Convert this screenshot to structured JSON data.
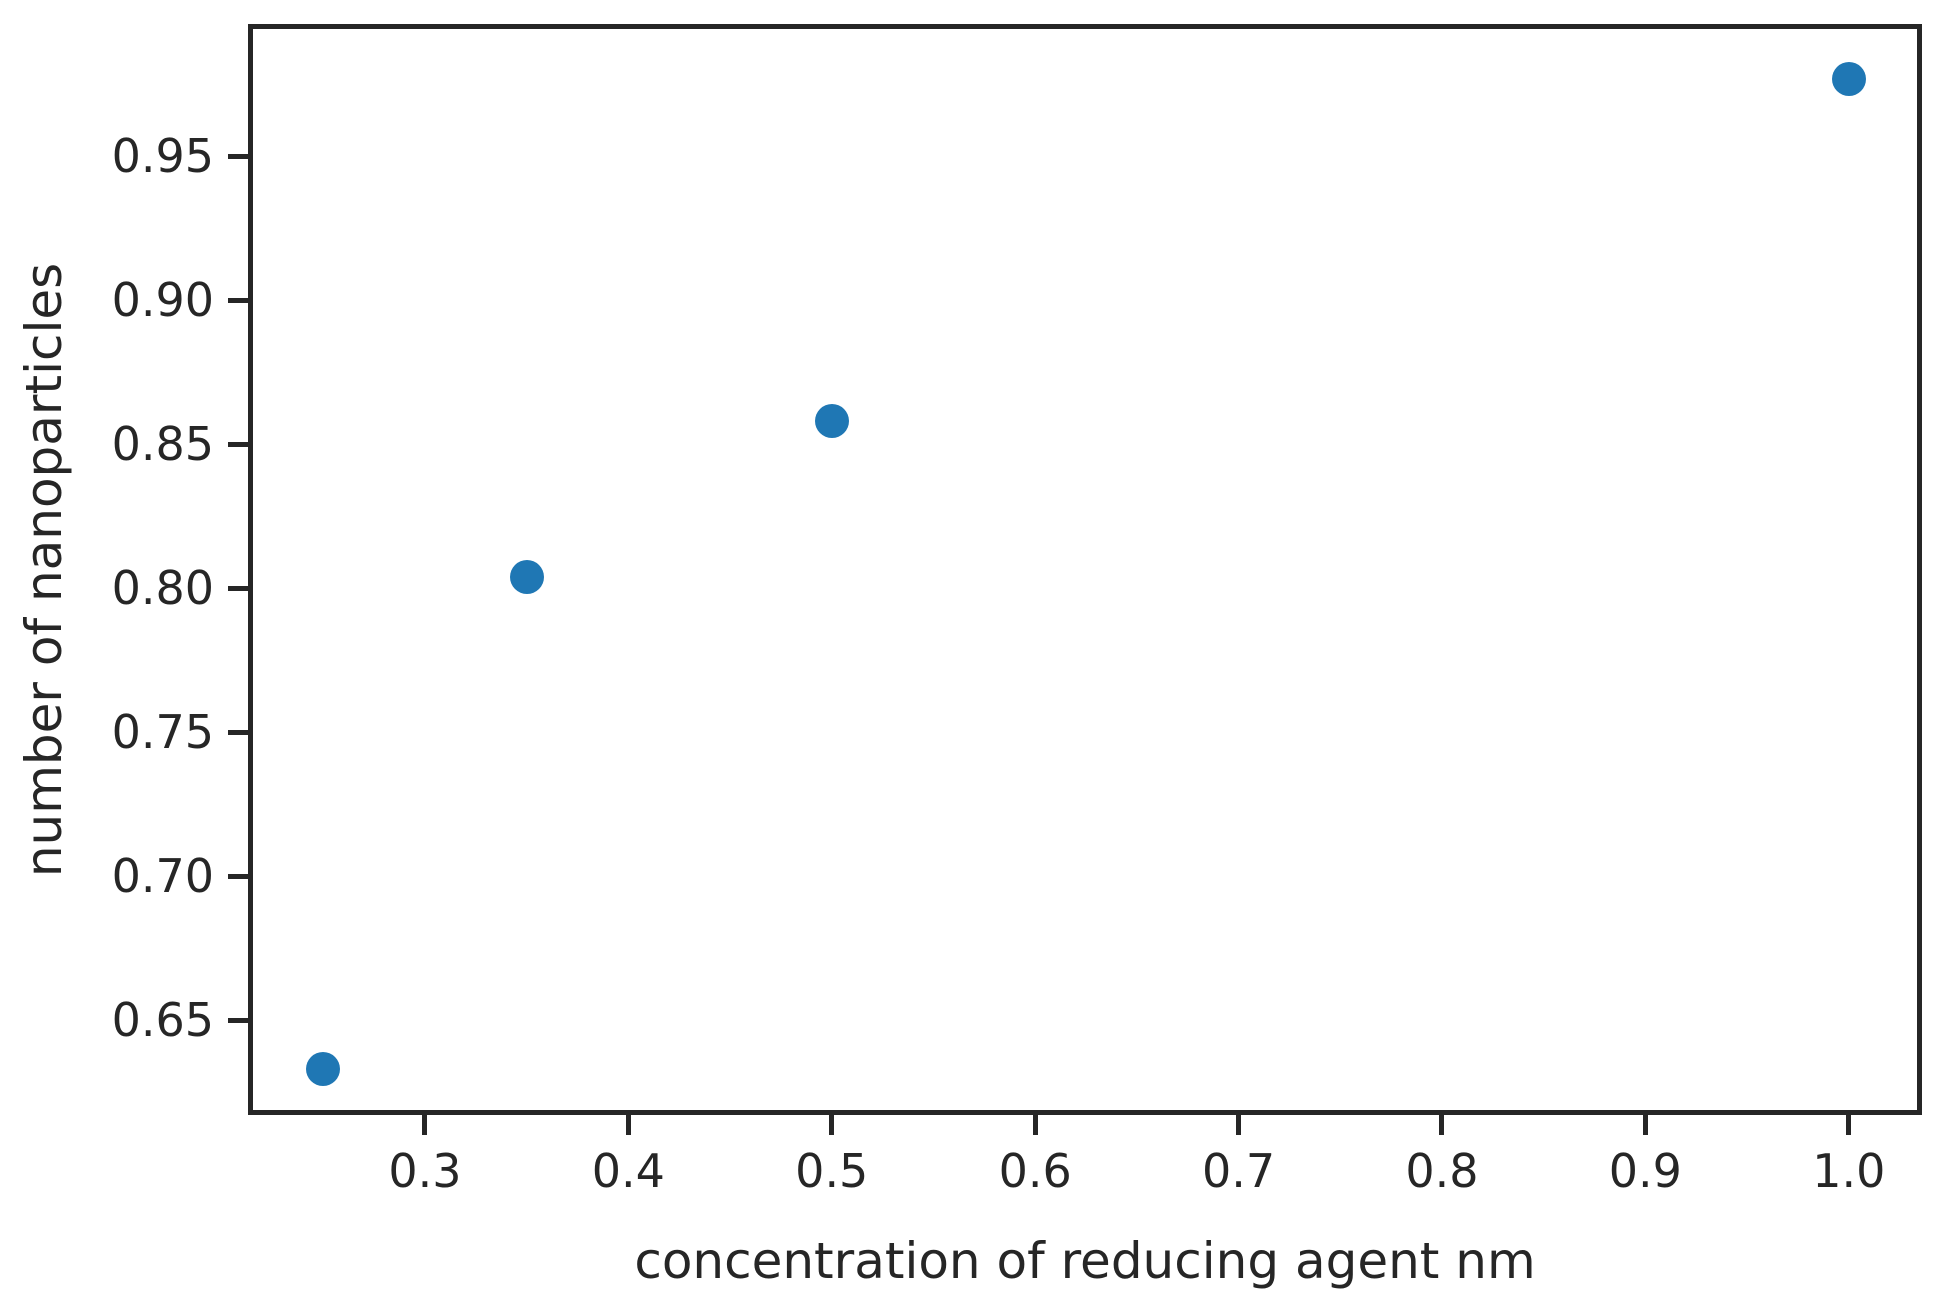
{
  "chart_data": {
    "type": "scatter",
    "title": "",
    "xlabel": "concentration of reducing agent nm",
    "ylabel": "number of nanoparticles",
    "x_tick_labels": [
      "0.3",
      "0.4",
      "0.5",
      "0.6",
      "0.7",
      "0.8",
      "0.9",
      "1.0"
    ],
    "y_tick_labels": [
      "0.65",
      "0.70",
      "0.75",
      "0.80",
      "0.85",
      "0.90",
      "0.95"
    ],
    "xlim": [
      0.213,
      1.036
    ],
    "ylim": [
      0.617,
      0.996
    ],
    "points": [
      {
        "x": 0.25,
        "y": 0.633
      },
      {
        "x": 0.35,
        "y": 0.804
      },
      {
        "x": 0.5,
        "y": 0.858
      },
      {
        "x": 1.0,
        "y": 0.977
      }
    ],
    "marker_color": "#1f77b4",
    "spine_color": "#262626",
    "text_color": "#262626",
    "grid": false,
    "legend": null
  }
}
